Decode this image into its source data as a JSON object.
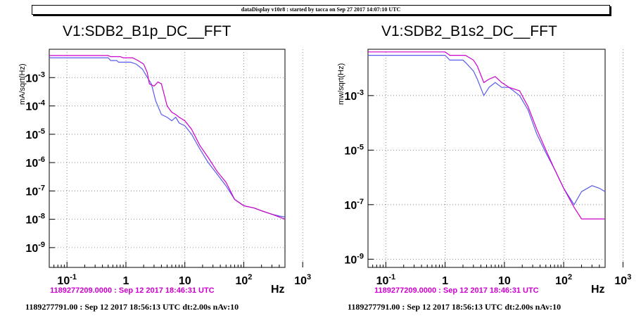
{
  "header": {
    "text": "dataDisplay v10r8 : started by tacca on Sep 27 2017 14:07:10 UTC"
  },
  "panels": [
    {
      "title": "V1:SDB2_B1p_DC__FFT",
      "ylabel": "mA/sqrt(Hz)",
      "xunit": "Hz",
      "subtitle": "1189277209.0000 : Sep 12 2017 18:46:31 UTC",
      "footer": "1189277791.00 : Sep 12 2017 18:56:13 UTC dt:2.00s nAv:10"
    },
    {
      "title": "V1:SDB2_B1s2_DC__FFT",
      "ylabel": "mw/sqrt(Hz)",
      "xunit": "Hz",
      "subtitle": "1189277209.0000 : Sep 12 2017 18:46:31 UTC",
      "footer": "1189277791.00 : Sep 12 2017 18:56:13 UTC dt:2.00s nAv:10"
    }
  ],
  "colors": {
    "series_ref": "#5a5af0",
    "series_cur": "#cc00cc",
    "grid": "#777777"
  },
  "chart_data": [
    {
      "type": "line",
      "title": "V1:SDB2_B1p_DC__FFT",
      "ylabel": "mA/sqrt(Hz)",
      "xscale": "log",
      "yscale": "log",
      "xlim": [
        0.05,
        500
      ],
      "ylim": [
        2e-10,
        0.01
      ],
      "grid": true,
      "x_ticks": [
        "10^-1",
        "1",
        "10",
        "10^2",
        "10^3"
      ],
      "y_ticks": [
        "10^-3",
        "10^-4",
        "10^-5",
        "10^-6",
        "10^-7",
        "10^-8",
        "10^-9"
      ],
      "series": [
        {
          "color": "#5a5af0",
          "x": [
            0.05,
            0.5,
            0.55,
            0.7,
            0.75,
            1.2,
            1.5,
            1.9,
            2.2,
            2.7,
            3.2,
            4,
            5,
            6,
            7,
            8,
            10,
            13,
            18,
            25,
            35,
            50,
            70,
            100,
            150,
            200,
            300,
            400,
            500
          ],
          "y": [
            0.005,
            0.005,
            0.004,
            0.004,
            0.0035,
            0.0035,
            0.003,
            0.002,
            0.0012,
            0.0006,
            0.00015,
            5e-05,
            4e-05,
            3e-05,
            4e-05,
            2.5e-05,
            2e-05,
            1e-05,
            3e-06,
            1e-06,
            4e-07,
            1.5e-07,
            5e-08,
            3e-08,
            2.5e-08,
            2e-08,
            1.5e-08,
            1.3e-08,
            1.2e-08
          ]
        },
        {
          "color": "#cc00cc",
          "x": [
            0.05,
            0.5,
            0.55,
            0.8,
            0.9,
            1.3,
            1.6,
            2,
            2.3,
            2.5,
            3,
            3.5,
            4,
            5,
            6,
            7,
            8,
            10,
            13,
            18,
            25,
            35,
            50,
            70,
            100,
            150,
            200,
            300,
            400,
            500
          ],
          "y": [
            0.006,
            0.006,
            0.0055,
            0.0055,
            0.005,
            0.005,
            0.004,
            0.003,
            0.0015,
            0.0006,
            0.0005,
            0.0007,
            0.0006,
            0.0001,
            6e-05,
            5e-05,
            4e-05,
            3e-05,
            1.5e-05,
            4e-06,
            1.5e-06,
            5e-07,
            2e-07,
            5e-08,
            3e-08,
            2.5e-08,
            2e-08,
            1.5e-08,
            1.2e-08,
            1e-08
          ]
        }
      ]
    },
    {
      "type": "line",
      "title": "V1:SDB2_B1s2_DC__FFT",
      "ylabel": "mw/sqrt(Hz)",
      "xscale": "log",
      "yscale": "log",
      "xlim": [
        0.05,
        500
      ],
      "ylim": [
        5e-10,
        0.05
      ],
      "grid": true,
      "x_ticks": [
        "10^-1",
        "1",
        "10",
        "10^2",
        "10^3"
      ],
      "y_ticks": [
        "10^-3",
        "10^-5",
        "10^-7",
        "10^-9"
      ],
      "series": [
        {
          "color": "#5a5af0",
          "x": [
            0.05,
            1,
            1.2,
            2,
            2.3,
            3,
            3.5,
            4.5,
            5.5,
            7,
            9,
            12,
            18,
            25,
            35,
            50,
            70,
            100,
            150,
            200,
            300,
            400,
            500
          ],
          "y": [
            0.03,
            0.03,
            0.02,
            0.02,
            0.015,
            0.008,
            0.004,
            0.001,
            0.002,
            0.003,
            0.002,
            0.002,
            0.001,
            0.0003,
            4e-05,
            8e-06,
            2e-06,
            4e-07,
            1e-07,
            3e-07,
            5e-07,
            4e-07,
            3e-07
          ]
        },
        {
          "color": "#cc00cc",
          "x": [
            0.05,
            1,
            1.2,
            2,
            2.2,
            3,
            3.5,
            4.5,
            5.5,
            7,
            9,
            12,
            18,
            25,
            35,
            50,
            70,
            100,
            150,
            200,
            300,
            400,
            500
          ],
          "y": [
            0.04,
            0.04,
            0.03,
            0.03,
            0.03,
            0.02,
            0.012,
            0.003,
            0.004,
            0.005,
            0.003,
            0.002,
            0.0015,
            0.0004,
            6e-05,
            1e-05,
            2e-06,
            4e-07,
            8e-08,
            3e-08,
            3e-08,
            3e-08,
            3e-08
          ]
        }
      ]
    }
  ]
}
